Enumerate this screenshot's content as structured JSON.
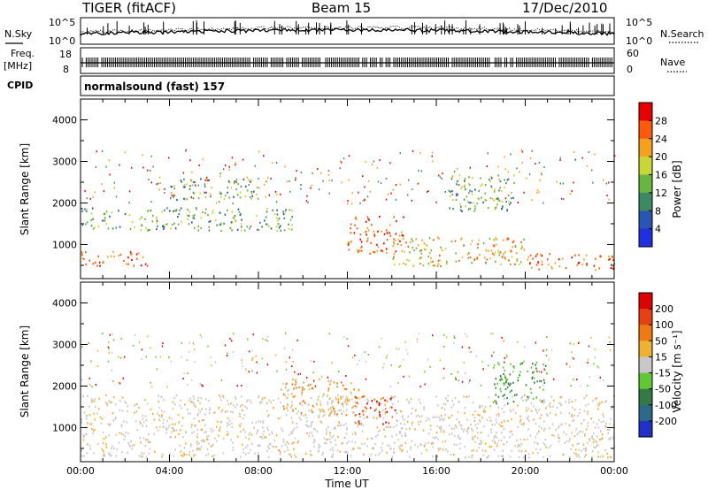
{
  "header": {
    "radar": "TIGER (fitACF)",
    "beam": "Beam 15",
    "date": "17/Dec/2010"
  },
  "params_panel": {
    "nsky_label": "N.Sky",
    "nsky_ticks": [
      "10^5",
      "10^0"
    ],
    "nsearch_label": "N.Search",
    "nsearch_ticks": [
      "10^5",
      "10^0"
    ],
    "freq_label": "Freq.",
    "freq_unit": "[MHz]",
    "freq_ticks": [
      "18",
      "8"
    ],
    "nave_label": "Nave",
    "nave_ticks": [
      "60",
      "0"
    ],
    "cpid_label": "CPID",
    "cpid_text": "normalsound (fast) 157"
  },
  "chart_data": [
    {
      "type": "heatmap",
      "panel": "power",
      "ylabel": "Slant Range [km]",
      "y_ticks": [
        "1000",
        "2000",
        "3000",
        "4000"
      ],
      "ylim": [
        180,
        4500
      ],
      "x_ticks": [
        "00:00",
        "04:00",
        "08:00",
        "12:00",
        "16:00",
        "20:00",
        "00:00"
      ],
      "xlim_hours": [
        0,
        24
      ],
      "colorbar": {
        "label": "Power [dB]",
        "ticks": [
          "4",
          "8",
          "12",
          "16",
          "20",
          "24",
          "28"
        ],
        "colors": [
          "#1e30e0",
          "#2a55b5",
          "#3c8a64",
          "#6ab440",
          "#c8d636",
          "#f5a11c",
          "#ff5a0a",
          "#e80000"
        ]
      },
      "echo_bands": [
        {
          "from_h": 0.0,
          "to_h": 9.5,
          "range_km": [
            1350,
            1900
          ],
          "level": "green"
        },
        {
          "from_h": 0.0,
          "to_h": 3.0,
          "range_km": [
            500,
            850
          ],
          "level": "red"
        },
        {
          "from_h": 4.0,
          "to_h": 8.0,
          "range_km": [
            2100,
            2600
          ],
          "level": "green"
        },
        {
          "from_h": 12.0,
          "to_h": 14.5,
          "range_km": [
            800,
            1700
          ],
          "level": "red"
        },
        {
          "from_h": 14.0,
          "to_h": 20.0,
          "range_km": [
            500,
            1200
          ],
          "level": "orange"
        },
        {
          "from_h": 20.0,
          "to_h": 24.0,
          "range_km": [
            400,
            800
          ],
          "level": "red"
        },
        {
          "from_h": 16.5,
          "to_h": 19.5,
          "range_km": [
            1800,
            2700
          ],
          "level": "green"
        }
      ]
    },
    {
      "type": "heatmap",
      "panel": "velocity",
      "ylabel": "Slant Range [km]",
      "y_ticks": [
        "1000",
        "2000",
        "3000",
        "4000"
      ],
      "ylim": [
        180,
        4500
      ],
      "x_ticks": [
        "00:00",
        "04:00",
        "08:00",
        "12:00",
        "16:00",
        "20:00",
        "00:00"
      ],
      "xlabel": "Time UT",
      "xlim_hours": [
        0,
        24
      ],
      "colorbar": {
        "label": "Velocity [m s⁻¹]",
        "ticks": [
          "200",
          "100",
          "50",
          "15",
          "-15",
          "-50",
          "-100",
          "-200"
        ],
        "colors": [
          "#2030c8",
          "#2d6a8a",
          "#357a45",
          "#5fc832",
          "#c8c8c8",
          "#f0b030",
          "#f07a10",
          "#e84010",
          "#e00000"
        ]
      },
      "echo_bands": [
        {
          "from_h": 0.0,
          "to_h": 24.0,
          "range_km": [
            300,
            1800
          ],
          "level": "gray"
        },
        {
          "from_h": 12.3,
          "to_h": 14.2,
          "range_km": [
            1100,
            1800
          ],
          "level": "red"
        },
        {
          "from_h": 9.0,
          "to_h": 12.5,
          "range_km": [
            1300,
            2200
          ],
          "level": "orange"
        },
        {
          "from_h": 18.5,
          "to_h": 21.0,
          "range_km": [
            1600,
            2600
          ],
          "level": "green"
        }
      ]
    }
  ]
}
